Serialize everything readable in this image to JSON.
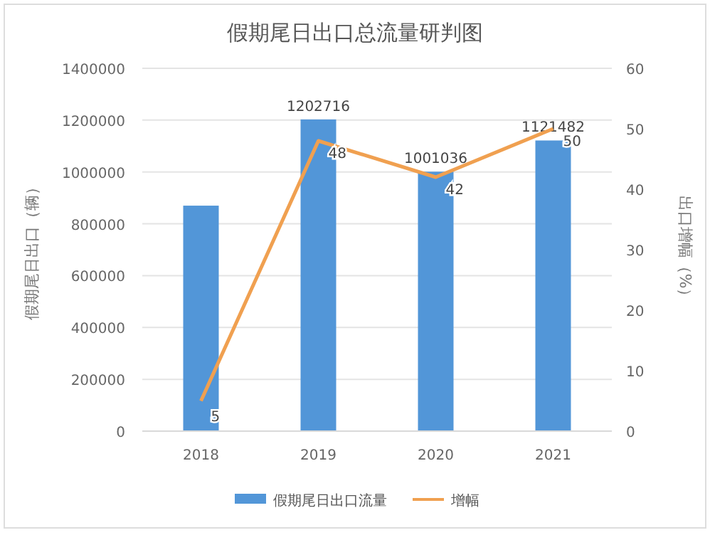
{
  "chart_data": {
    "type": "bar",
    "title": "假期尾日出口总流量研判图",
    "categories": [
      "2018",
      "2019",
      "2020",
      "2021"
    ],
    "ylabel": "假期尾日出口（辆）",
    "y2label": "出口增幅（%）",
    "series": [
      {
        "name": "假期尾日出口流量",
        "color": "#5296d8",
        "values": [
          870000,
          1202716,
          1001036,
          1121482
        ],
        "value_labels": [
          null,
          "1202716",
          "1001036",
          "1121482"
        ]
      },
      {
        "name": "增幅",
        "type": "line",
        "axis": "y2",
        "color": "#f0a050",
        "values": [
          5,
          48,
          42,
          50
        ],
        "value_labels": [
          "5",
          "48",
          "42",
          "50"
        ]
      }
    ],
    "ylim": [
      0,
      1400000
    ],
    "yticks": [
      0,
      200000,
      400000,
      600000,
      800000,
      1000000,
      1200000,
      1400000
    ],
    "y2lim": [
      0,
      60
    ],
    "y2ticks": [
      0,
      10,
      20,
      30,
      40,
      50,
      60
    ],
    "grid": "y",
    "legend": "bottom",
    "marker": "none"
  }
}
